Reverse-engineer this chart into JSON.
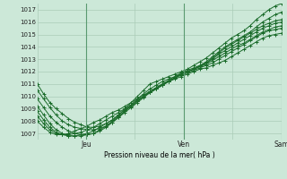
{
  "bg_color": "#cce8d8",
  "grid_color": "#aaccb8",
  "line_color": "#1a6b2a",
  "ylabel_text": "Pression niveau de la mer( hPa )",
  "ylim": [
    1006.5,
    1017.5
  ],
  "yticks": [
    1007,
    1008,
    1009,
    1010,
    1011,
    1012,
    1013,
    1014,
    1015,
    1016,
    1017
  ],
  "xtick_labels": [
    "",
    "Jeu",
    "",
    "Ven",
    "",
    "Sam"
  ],
  "xtick_positions": [
    0,
    24,
    48,
    72,
    96,
    120
  ],
  "total_hours": 120,
  "series": [
    [
      1011.0,
      1010.2,
      1009.5,
      1009.0,
      1008.6,
      1008.2,
      1007.9,
      1007.7,
      1007.5,
      1007.5,
      1007.6,
      1007.8,
      1008.1,
      1008.5,
      1009.0,
      1009.5,
      1010.0,
      1010.5,
      1011.0,
      1011.2,
      1011.4,
      1011.6,
      1011.8,
      1012.0,
      1012.2,
      1012.5,
      1012.8,
      1013.1,
      1013.5,
      1013.9,
      1014.3,
      1014.7,
      1015.0,
      1015.3,
      1015.7,
      1016.2,
      1016.6,
      1017.0,
      1017.3,
      1017.5
    ],
    [
      1010.5,
      1009.8,
      1009.1,
      1008.5,
      1008.0,
      1007.7,
      1007.5,
      1007.4,
      1007.3,
      1007.3,
      1007.4,
      1007.6,
      1007.9,
      1008.3,
      1008.8,
      1009.3,
      1009.8,
      1010.2,
      1010.6,
      1010.9,
      1011.2,
      1011.4,
      1011.6,
      1011.8,
      1012.0,
      1012.2,
      1012.5,
      1012.8,
      1013.2,
      1013.6,
      1014.0,
      1014.3,
      1014.6,
      1014.9,
      1015.2,
      1015.6,
      1016.0,
      1016.3,
      1016.6,
      1016.8
    ],
    [
      1009.8,
      1009.1,
      1008.4,
      1007.9,
      1007.5,
      1007.2,
      1007.0,
      1006.9,
      1006.9,
      1007.0,
      1007.2,
      1007.5,
      1007.9,
      1008.3,
      1008.7,
      1009.1,
      1009.5,
      1009.9,
      1010.3,
      1010.6,
      1010.9,
      1011.2,
      1011.5,
      1011.8,
      1012.0,
      1012.2,
      1012.4,
      1012.7,
      1013.1,
      1013.5,
      1013.9,
      1014.2,
      1014.5,
      1014.8,
      1015.1,
      1015.4,
      1015.7,
      1015.9,
      1016.1,
      1016.2
    ],
    [
      1009.2,
      1008.5,
      1007.8,
      1007.3,
      1007.0,
      1006.8,
      1006.8,
      1006.8,
      1006.9,
      1007.0,
      1007.3,
      1007.6,
      1008.0,
      1008.4,
      1008.8,
      1009.2,
      1009.6,
      1010.0,
      1010.4,
      1010.7,
      1011.0,
      1011.3,
      1011.6,
      1011.9,
      1012.1,
      1012.3,
      1012.5,
      1012.7,
      1013.0,
      1013.4,
      1013.7,
      1014.0,
      1014.3,
      1014.6,
      1014.9,
      1015.2,
      1015.5,
      1015.7,
      1015.9,
      1016.0
    ],
    [
      1008.8,
      1008.1,
      1007.5,
      1007.1,
      1006.9,
      1006.8,
      1006.8,
      1006.9,
      1007.0,
      1007.2,
      1007.5,
      1007.8,
      1008.1,
      1008.5,
      1008.9,
      1009.2,
      1009.6,
      1010.0,
      1010.3,
      1010.6,
      1010.9,
      1011.2,
      1011.5,
      1011.8,
      1012.0,
      1012.2,
      1012.4,
      1012.6,
      1012.9,
      1013.2,
      1013.5,
      1013.8,
      1014.1,
      1014.3,
      1014.6,
      1014.9,
      1015.2,
      1015.4,
      1015.6,
      1015.7
    ],
    [
      1008.4,
      1007.8,
      1007.3,
      1007.0,
      1006.9,
      1006.9,
      1007.0,
      1007.1,
      1007.3,
      1007.5,
      1007.8,
      1008.1,
      1008.4,
      1008.7,
      1009.0,
      1009.3,
      1009.7,
      1010.0,
      1010.3,
      1010.6,
      1010.9,
      1011.2,
      1011.5,
      1011.7,
      1011.9,
      1012.1,
      1012.3,
      1012.5,
      1012.7,
      1013.0,
      1013.3,
      1013.6,
      1013.9,
      1014.2,
      1014.5,
      1014.8,
      1015.1,
      1015.3,
      1015.4,
      1015.5
    ],
    [
      1008.0,
      1007.5,
      1007.1,
      1006.9,
      1006.9,
      1007.0,
      1007.2,
      1007.4,
      1007.6,
      1007.9,
      1008.1,
      1008.4,
      1008.7,
      1008.9,
      1009.2,
      1009.5,
      1009.8,
      1010.1,
      1010.4,
      1010.7,
      1011.0,
      1011.2,
      1011.4,
      1011.6,
      1011.8,
      1012.0,
      1012.2,
      1012.3,
      1012.5,
      1012.7,
      1012.9,
      1013.2,
      1013.5,
      1013.8,
      1014.1,
      1014.4,
      1014.7,
      1014.9,
      1015.0,
      1015.1
    ]
  ]
}
